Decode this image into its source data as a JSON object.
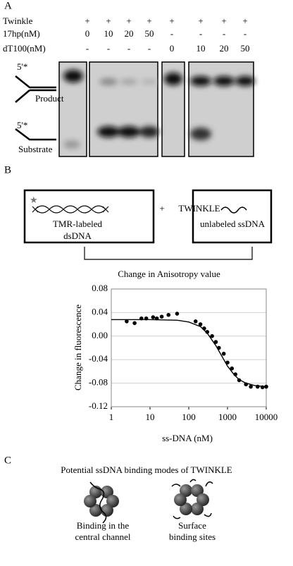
{
  "panel_a": {
    "label": "A",
    "rows": [
      {
        "name": "Twinkle",
        "lanes": [
          "+",
          "+",
          "+",
          "+",
          "+",
          "+",
          "+",
          "+"
        ]
      },
      {
        "name": "17hp(nM)",
        "lanes": [
          "0",
          "10",
          "20",
          "50",
          "-",
          "-",
          "-",
          "-"
        ]
      },
      {
        "name": "dT100(nM)",
        "lanes": [
          "-",
          "-",
          "-",
          "-",
          "0",
          "10",
          "20",
          "50"
        ]
      }
    ],
    "product": {
      "mark": "5'*",
      "label": "Product"
    },
    "substrate": {
      "mark": "5'*",
      "label": "Substrate"
    }
  },
  "panel_b": {
    "label": "B",
    "box1": [
      "TMR-labeled",
      "dsDNA"
    ],
    "plus": "+",
    "protein": "TWINKLE",
    "box2": "unlabeled ssDNA",
    "bracket": "Change in Anisotropy value"
  },
  "chart_data": {
    "type": "scatter",
    "xlabel": "ss-DNA (nM)",
    "ylabel": "Change in fluorescence",
    "xscale": "log",
    "xlim": [
      1,
      10000
    ],
    "xticks": [
      1,
      10,
      100,
      1000,
      10000
    ],
    "ylim": [
      -0.12,
      0.08
    ],
    "yticks": [
      0.08,
      0.04,
      {
        "value": 0,
        "label": "0.00"
      },
      -0.04,
      -0.08,
      -0.12
    ],
    "grid": true,
    "series": [
      {
        "mark": "point",
        "color": "#000000",
        "x": [
          2.5,
          4,
          6,
          8,
          12,
          15,
          20,
          30,
          50,
          150,
          200,
          250,
          300,
          400,
          500,
          600,
          800,
          1000,
          1300,
          1600,
          2000,
          3000,
          4000,
          6000,
          8000,
          10000
        ],
        "values": [
          0.025,
          0.022,
          0.03,
          0.03,
          0.032,
          0.03,
          0.033,
          0.036,
          0.038,
          0.025,
          0.02,
          0.013,
          0.007,
          0.0,
          -0.01,
          -0.02,
          -0.03,
          -0.045,
          -0.055,
          -0.065,
          -0.075,
          -0.082,
          -0.086,
          -0.086,
          -0.087,
          -0.086
        ]
      },
      {
        "mark": "line",
        "color": "#000000",
        "x": [
          1,
          10,
          50,
          100,
          200,
          300,
          500,
          700,
          1000,
          1500,
          2000,
          3000,
          5000,
          10000
        ],
        "values": [
          0.028,
          0.028,
          0.027,
          0.024,
          0.016,
          0.005,
          -0.016,
          -0.033,
          -0.051,
          -0.066,
          -0.074,
          -0.08,
          -0.084,
          -0.086
        ]
      }
    ]
  },
  "panel_c": {
    "label": "C",
    "title": "Potential ssDNA binding modes of TWINKLE",
    "mode1": [
      "Binding in the",
      "central channel"
    ],
    "mode2": [
      "Surface",
      "binding sites"
    ]
  }
}
